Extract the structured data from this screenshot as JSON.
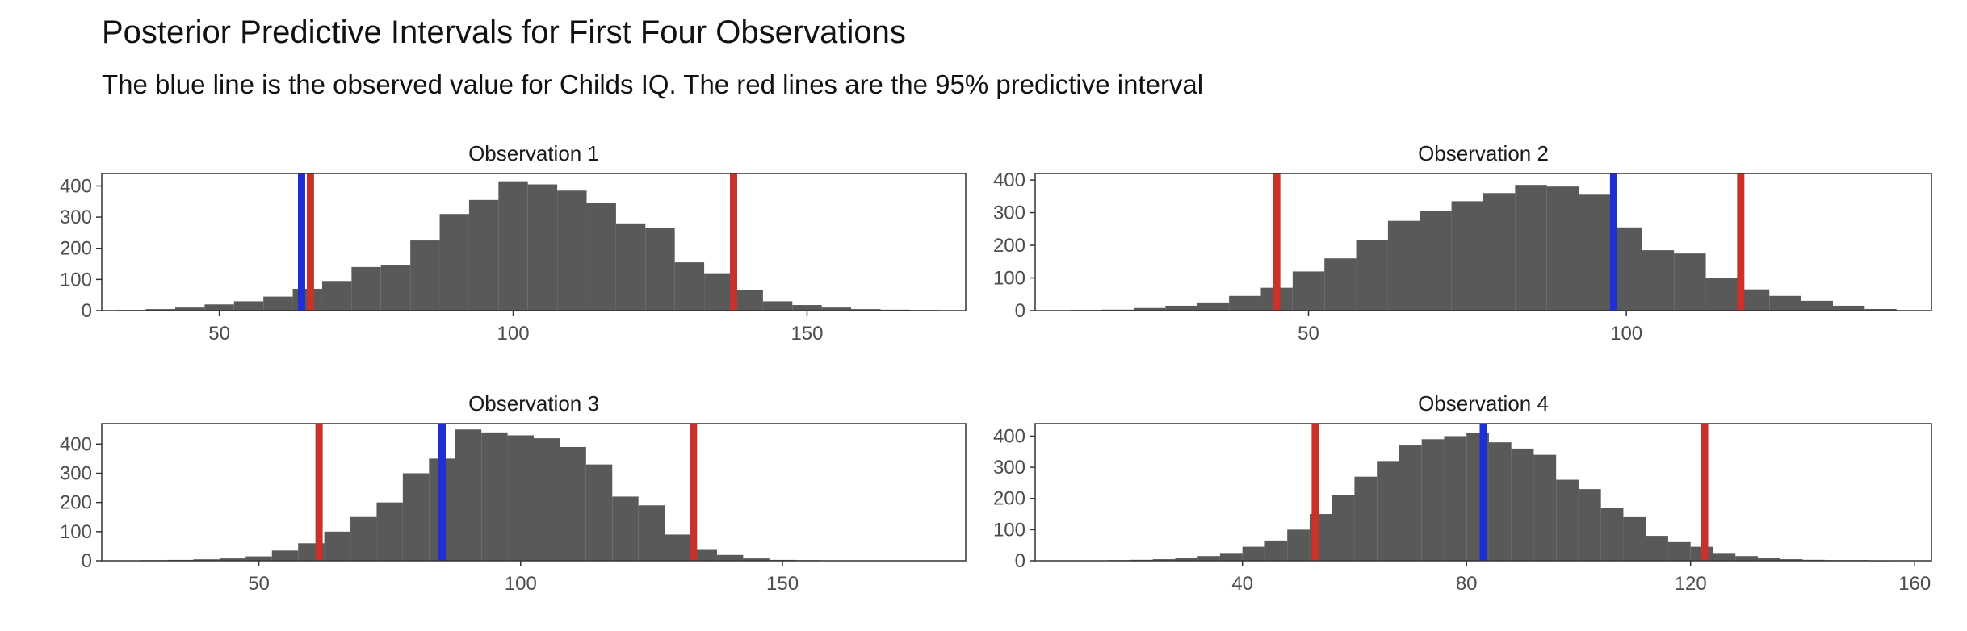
{
  "title": "Posterior Predictive Intervals for First Four Observations",
  "subtitle": "The blue line is the observed value for Childs IQ. The red lines are the 95% predictive interval",
  "colors": {
    "bar": "#595959",
    "observed": "#1f2fd6",
    "interval": "#c8322b",
    "panel_border": "#333333",
    "tick_text": "#4d4d4d"
  },
  "chart_data": [
    {
      "type": "bar",
      "panel_title": "Observation 1",
      "bin_width": 5,
      "bin_centers": [
        35,
        40,
        45,
        50,
        55,
        60,
        65,
        70,
        75,
        80,
        85,
        90,
        95,
        100,
        105,
        110,
        115,
        120,
        125,
        130,
        135,
        140,
        145,
        150,
        155,
        160,
        165,
        170
      ],
      "values": [
        2,
        5,
        10,
        20,
        30,
        45,
        70,
        95,
        140,
        145,
        225,
        310,
        355,
        415,
        405,
        385,
        345,
        280,
        265,
        155,
        120,
        65,
        30,
        18,
        10,
        5,
        3,
        2
      ],
      "observed": 64,
      "interval": [
        65.5,
        137.5
      ],
      "xlim": [
        30,
        177
      ],
      "ylim": [
        0,
        440
      ],
      "x_ticks": [
        50,
        100,
        150
      ],
      "y_ticks": [
        0,
        100,
        200,
        300,
        400
      ]
    },
    {
      "type": "bar",
      "panel_title": "Observation 2",
      "bin_width": 5,
      "bin_centers": [
        15,
        20,
        25,
        30,
        35,
        40,
        45,
        50,
        55,
        60,
        65,
        70,
        75,
        80,
        85,
        90,
        95,
        100,
        105,
        110,
        115,
        120,
        125,
        130,
        135,
        140
      ],
      "values": [
        2,
        3,
        8,
        15,
        25,
        45,
        70,
        120,
        160,
        215,
        275,
        305,
        335,
        360,
        385,
        380,
        355,
        255,
        185,
        175,
        100,
        65,
        45,
        30,
        15,
        5
      ],
      "observed": 98,
      "interval": [
        45,
        118
      ],
      "xlim": [
        7,
        148
      ],
      "ylim": [
        0,
        420
      ],
      "x_ticks": [
        50,
        100
      ],
      "y_ticks": [
        0,
        100,
        200,
        300,
        400
      ]
    },
    {
      "type": "bar",
      "panel_title": "Observation 3",
      "bin_width": 5,
      "bin_centers": [
        30,
        35,
        40,
        45,
        50,
        55,
        60,
        65,
        70,
        75,
        80,
        85,
        90,
        95,
        100,
        105,
        110,
        115,
        120,
        125,
        130,
        135,
        140,
        145,
        150,
        155
      ],
      "values": [
        2,
        3,
        5,
        8,
        15,
        35,
        60,
        100,
        150,
        200,
        300,
        350,
        450,
        440,
        430,
        420,
        390,
        330,
        220,
        190,
        90,
        40,
        20,
        8,
        3,
        2
      ],
      "observed": 85,
      "interval": [
        61.5,
        133
      ],
      "xlim": [
        20,
        185
      ],
      "ylim": [
        0,
        470
      ],
      "x_ticks": [
        50,
        100,
        150
      ],
      "y_ticks": [
        0,
        100,
        200,
        300,
        400
      ]
    },
    {
      "type": "bar",
      "panel_title": "Observation 4",
      "bin_width": 4,
      "bin_centers": [
        18,
        22,
        26,
        30,
        34,
        38,
        42,
        46,
        50,
        54,
        58,
        62,
        66,
        70,
        74,
        78,
        82,
        86,
        90,
        94,
        98,
        102,
        106,
        110,
        114,
        118,
        122,
        126,
        130,
        134,
        138,
        142,
        146,
        150,
        154
      ],
      "values": [
        2,
        3,
        5,
        8,
        15,
        25,
        45,
        65,
        100,
        150,
        210,
        270,
        320,
        370,
        390,
        400,
        410,
        380,
        360,
        340,
        260,
        230,
        170,
        140,
        80,
        60,
        45,
        25,
        15,
        10,
        5,
        3,
        2,
        2,
        1
      ],
      "observed": 83,
      "interval": [
        53,
        122.5
      ],
      "xlim": [
        3,
        163
      ],
      "ylim": [
        0,
        440
      ],
      "x_ticks": [
        40,
        80,
        120,
        160
      ],
      "y_ticks": [
        0,
        100,
        200,
        300,
        400
      ]
    }
  ]
}
